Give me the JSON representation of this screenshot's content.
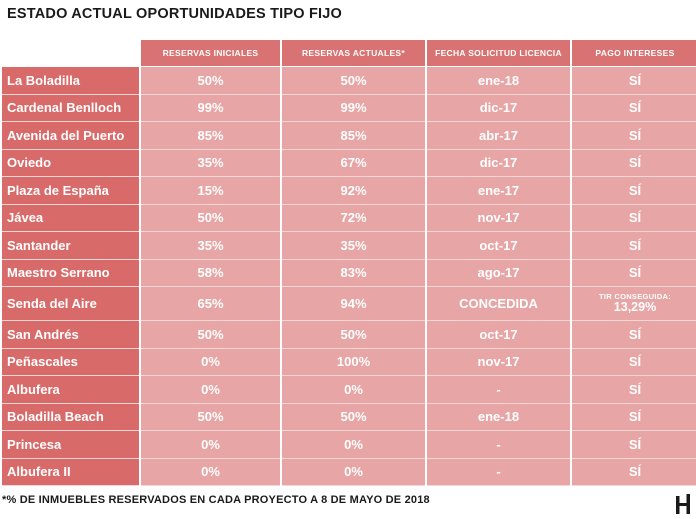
{
  "title": "ESTADO ACTUAL OPORTUNIDADES TIPO FIJO",
  "headers": [
    "RESERVAS INICIALES",
    "RESERVAS ACTUALES*",
    "FECHA SOLICITUD LICENCIA",
    "PAGO INTERESES"
  ],
  "rows": [
    {
      "name": "La Boladilla",
      "iniciales": "50%",
      "actuales": "50%",
      "fecha": "ene-18",
      "pago": "SÍ"
    },
    {
      "name": "Cardenal Benlloch",
      "iniciales": "99%",
      "actuales": "99%",
      "fecha": "dic-17",
      "pago": "SÍ"
    },
    {
      "name": "Avenida del Puerto",
      "iniciales": "85%",
      "actuales": "85%",
      "fecha": "abr-17",
      "pago": "SÍ"
    },
    {
      "name": "Oviedo",
      "iniciales": "35%",
      "actuales": "67%",
      "fecha": "dic-17",
      "pago": "SÍ"
    },
    {
      "name": "Plaza de España",
      "iniciales": "15%",
      "actuales": "92%",
      "fecha": "ene-17",
      "pago": "SÍ"
    },
    {
      "name": "Jávea",
      "iniciales": "50%",
      "actuales": "72%",
      "fecha": "nov-17",
      "pago": "SÍ"
    },
    {
      "name": "Santander",
      "iniciales": "35%",
      "actuales": "35%",
      "fecha": "oct-17",
      "pago": "SÍ"
    },
    {
      "name": "Maestro Serrano",
      "iniciales": "58%",
      "actuales": "83%",
      "fecha": "ago-17",
      "pago": "SÍ"
    },
    {
      "name": "Senda del Aire",
      "iniciales": "65%",
      "actuales": "94%",
      "fecha": "CONCEDIDA",
      "pago_label": "TIR CONSEGUIDA:",
      "pago_value": "13,29%"
    },
    {
      "name": "San Andrés",
      "iniciales": "50%",
      "actuales": "50%",
      "fecha": "oct-17",
      "pago": "SÍ"
    },
    {
      "name": "Peñascales",
      "iniciales": "0%",
      "actuales": "100%",
      "fecha": "nov-17",
      "pago": "SÍ"
    },
    {
      "name": "Albufera",
      "iniciales": "0%",
      "actuales": "0%",
      "fecha": "-",
      "pago": "SÍ"
    },
    {
      "name": "Boladilla Beach",
      "iniciales": "50%",
      "actuales": "50%",
      "fecha": "ene-18",
      "pago": "SÍ"
    },
    {
      "name": "Princesa",
      "iniciales": "0%",
      "actuales": "0%",
      "fecha": "-",
      "pago": "SÍ"
    },
    {
      "name": "Albufera II",
      "iniciales": "0%",
      "actuales": "0%",
      "fecha": "-",
      "pago": "SÍ"
    }
  ],
  "footnote": "*% DE INMUEBLES RESERVADOS EN CADA PROYECTO A 8 DE MAYO DE 2018",
  "logo": {
    "icon": "h-logo-icon",
    "color": "#1a1a1a"
  },
  "colors": {
    "name_cell": "#d96a6a",
    "value_cell": "#e7a5a5",
    "header_cell": "#d97272",
    "text": "#ffffff"
  }
}
